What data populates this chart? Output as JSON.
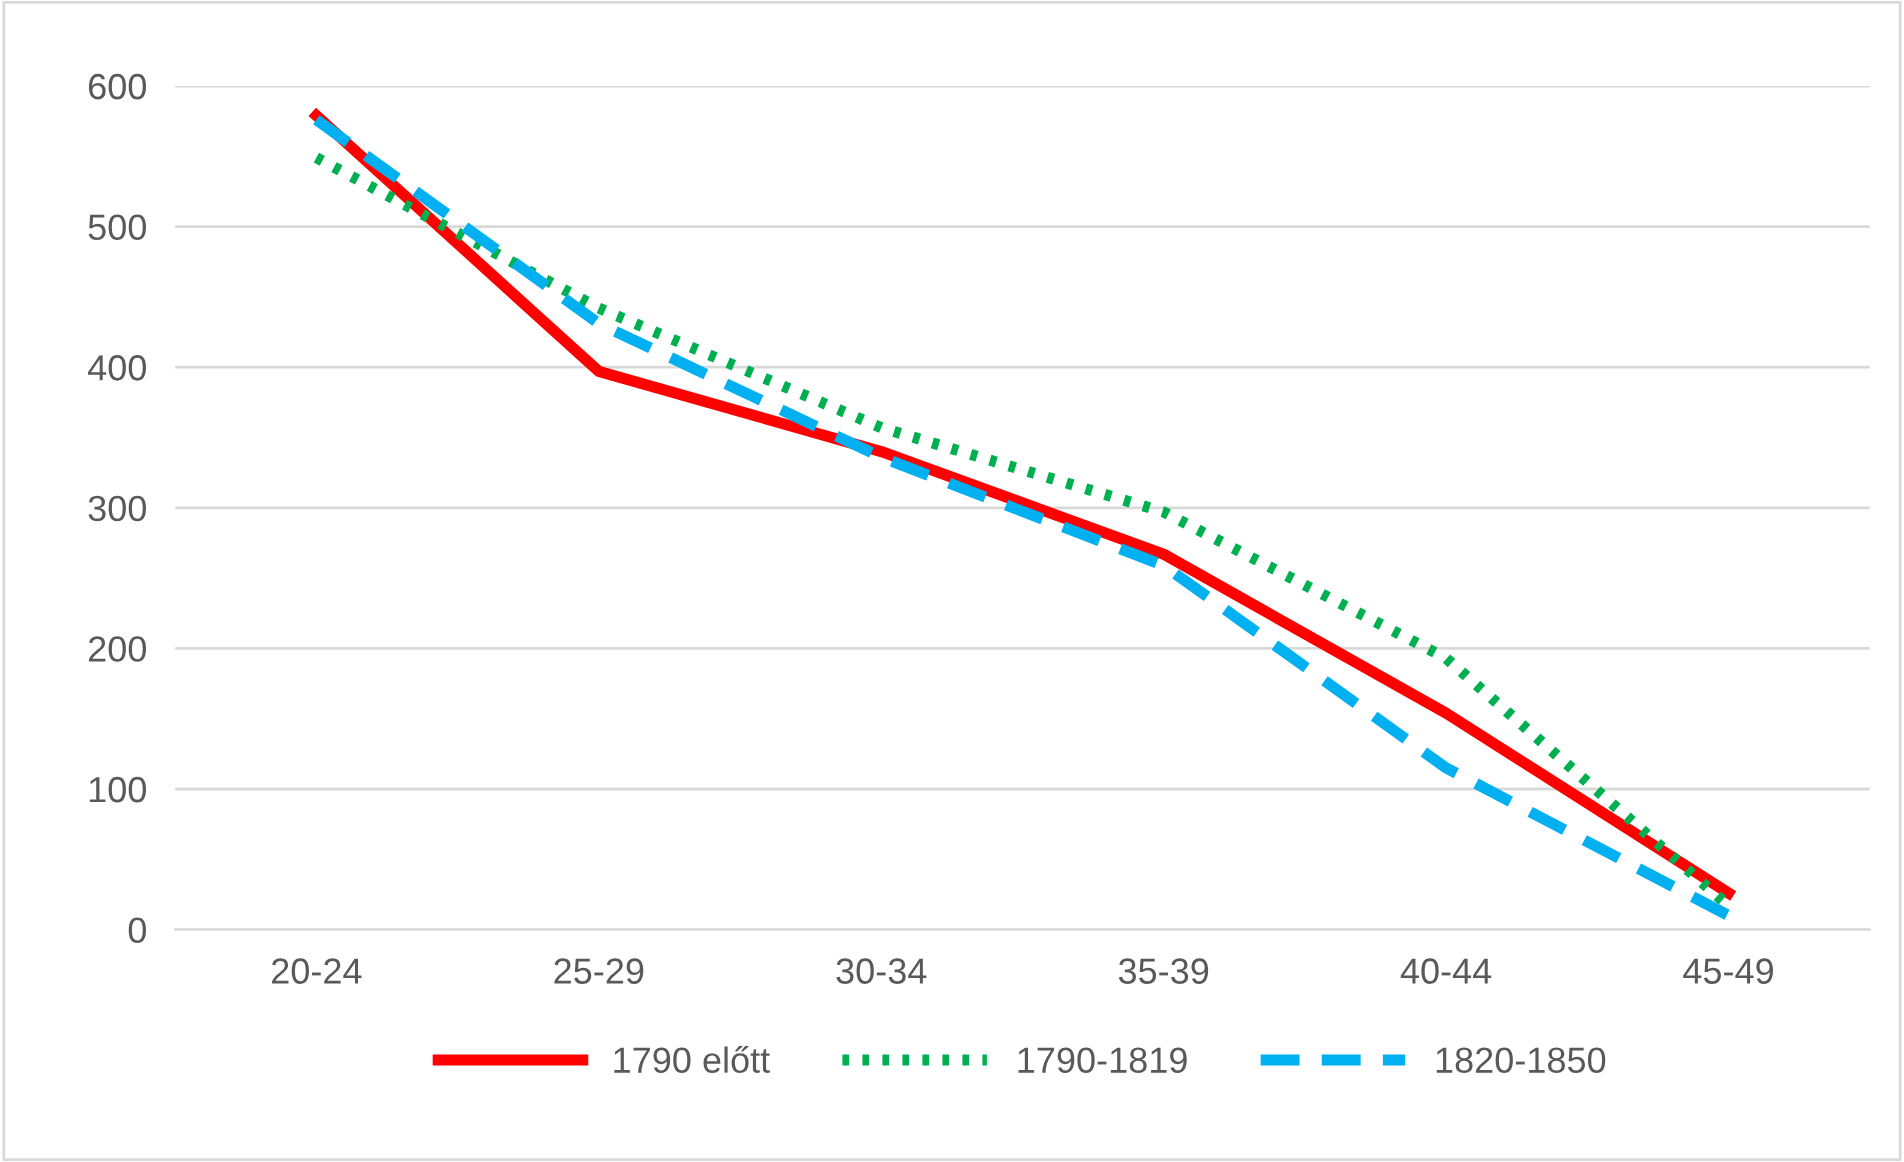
{
  "chart_data": {
    "type": "line",
    "categories": [
      "20-24",
      "25-29",
      "30-34",
      "35-39",
      "40-44",
      "45-49"
    ],
    "series": [
      {
        "name": "1790 előtt",
        "color": "#ff0000",
        "line_style": "solid",
        "values": [
          579,
          397,
          340,
          267,
          154,
          26
        ]
      },
      {
        "name": "1790-1819",
        "color": "#00b050",
        "line_style": "dotted",
        "values": [
          549,
          442,
          357,
          297,
          193,
          17
        ]
      },
      {
        "name": "1820-1850",
        "color": "#00b0f0",
        "line_style": "dashed",
        "values": [
          576,
          431,
          336,
          259,
          115,
          10
        ]
      }
    ],
    "ylim": [
      0,
      600
    ],
    "yticks": [
      0,
      100,
      200,
      300,
      400,
      500,
      600
    ],
    "grid": "y",
    "legend": "bottom"
  }
}
